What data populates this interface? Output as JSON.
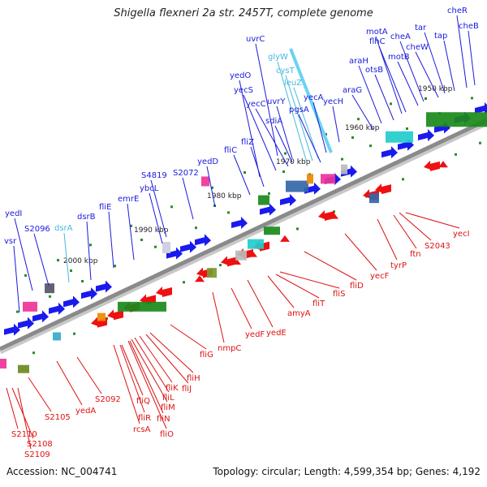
{
  "title": "Shigella flexneri 2a str. 2457T, complete genome",
  "footer": {
    "accession": "Accession: NC_004741",
    "summary": "Topology: circular; Length: 4,599,354 bp; Genes: 4,192"
  },
  "kbp_ticks": [
    "1950 kbp",
    "1960 kbp",
    "1970 kbp",
    "1980 kbp",
    "1990 kbp",
    "2000 kbp"
  ],
  "colors": {
    "forward_label": "#1a1adc",
    "trna_label": "#44b8e0",
    "reverse_label": "#dd1111",
    "backbone": "#8a8a8a"
  },
  "forward_genes": [
    "vsr",
    "yedI",
    "S2096",
    "dsrA",
    "dsrB",
    "fliE",
    "emrE",
    "ybcL",
    "S4819",
    "S2072",
    "yedD",
    "fliC",
    "fliZ",
    "uvrC",
    "yecC",
    "yedO",
    "yecS",
    "uvrY",
    "sdiA",
    "glyW",
    "cysT",
    "leuZ",
    "pgsA",
    "yecA",
    "yecH",
    "araG",
    "araH",
    "otsB",
    "motA",
    "flhC",
    "motB",
    "cheA",
    "cheW",
    "tar",
    "tap",
    "cheR",
    "cheB"
  ],
  "trna_genes": [
    "dsrA",
    "glyW",
    "cysT",
    "leuZ"
  ],
  "reverse_genes": [
    "S2110",
    "S2108",
    "S2109",
    "S2105",
    "yedA",
    "S2092",
    "rcsA",
    "fliR",
    "fliQ",
    "fliN",
    "fliO",
    "fliM",
    "fliL",
    "fliK",
    "fliJ",
    "fliH",
    "fliG",
    "nmpC",
    "yedF",
    "yedE",
    "amyA",
    "fliT",
    "fliS",
    "fliD",
    "yecF",
    "tyrP",
    "ftn",
    "S2043",
    "yecI"
  ]
}
